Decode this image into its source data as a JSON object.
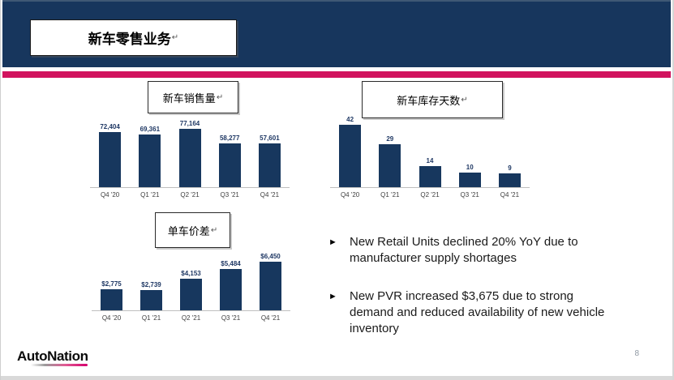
{
  "page": {
    "title": "新车零售业务",
    "paragraph_mark": "↵",
    "logo": "AutoNation",
    "page_number": "8"
  },
  "colors": {
    "header_navy": "#17365D",
    "accent_pink": "#D1135E",
    "bar_fill": "#17375E",
    "axis_gray": "#BFBFBF"
  },
  "chart_data": [
    {
      "type": "bar",
      "title": "新车销售量",
      "categories": [
        "Q4 '20",
        "Q1 '21",
        "Q2 '21",
        "Q3 '21",
        "Q4 '21"
      ],
      "values": [
        72404,
        69361,
        77164,
        58277,
        57601
      ],
      "value_labels": [
        "72,404",
        "69,361",
        "77,164",
        "58,277",
        "57,601"
      ],
      "xlabel": "",
      "ylabel": "",
      "ylim": [
        0,
        77164
      ],
      "grid": false,
      "legend": "none"
    },
    {
      "type": "bar",
      "title": "新车库存天数",
      "categories": [
        "Q4 '20",
        "Q1 '21",
        "Q2 '21",
        "Q3 '21",
        "Q4 '21"
      ],
      "values": [
        42,
        29,
        14,
        10,
        9
      ],
      "value_labels": [
        "42",
        "29",
        "14",
        "10",
        "9"
      ],
      "xlabel": "",
      "ylabel": "",
      "ylim": [
        0,
        42
      ],
      "grid": false,
      "legend": "none"
    },
    {
      "type": "bar",
      "title": "单车价差",
      "categories": [
        "Q4 '20",
        "Q1 '21",
        "Q2 '21",
        "Q3 '21",
        "Q4 '21"
      ],
      "values": [
        2775,
        2739,
        4153,
        5484,
        6450
      ],
      "value_labels": [
        "$2,775",
        "$2,739",
        "$4,153",
        "$5,484",
        "$6,450"
      ],
      "xlabel": "",
      "ylabel": "",
      "ylim": [
        0,
        6450
      ],
      "grid": false,
      "legend": "none"
    }
  ],
  "bullets": {
    "marker": "►",
    "items": [
      "New Retail Units declined 20% YoY due to manufacturer supply shortages",
      "New PVR increased $3,675 due to strong demand and reduced availability of new vehicle inventory"
    ]
  }
}
